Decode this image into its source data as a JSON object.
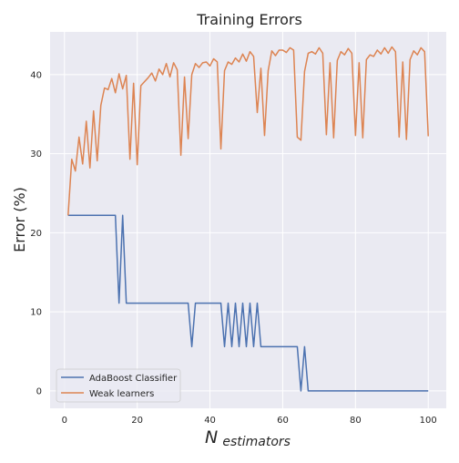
{
  "chart_data": {
    "type": "line",
    "title": "Training Errors",
    "xlabel_base": "N",
    "xlabel_sub": "estimators",
    "ylabel": "Error (%)",
    "xlim": [
      -3.95,
      104.95
    ],
    "ylim": [
      -2.2,
      45.4
    ],
    "xticks": [
      0,
      20,
      40,
      60,
      80,
      100
    ],
    "yticks": [
      0,
      10,
      20,
      30,
      40
    ],
    "grid": true,
    "legend_position": "lower-left",
    "series": [
      {
        "name": "AdaBoost Classifier",
        "color": "#4c72b0",
        "x": [
          1,
          2,
          3,
          4,
          5,
          6,
          7,
          8,
          9,
          10,
          11,
          12,
          13,
          14,
          15,
          16,
          17,
          18,
          19,
          20,
          21,
          22,
          23,
          24,
          25,
          26,
          27,
          28,
          29,
          30,
          31,
          32,
          33,
          34,
          35,
          36,
          37,
          38,
          39,
          40,
          41,
          42,
          43,
          44,
          45,
          46,
          47,
          48,
          49,
          50,
          51,
          52,
          53,
          54,
          55,
          56,
          57,
          58,
          59,
          60,
          61,
          62,
          63,
          64,
          65,
          66,
          67,
          68,
          69,
          70,
          71,
          72,
          73,
          74,
          75,
          76,
          77,
          78,
          79,
          80,
          81,
          82,
          83,
          84,
          85,
          86,
          87,
          88,
          89,
          90,
          91,
          92,
          93,
          94,
          95,
          96,
          97,
          98,
          99,
          100
        ],
        "y": [
          22.2,
          22.2,
          22.2,
          22.2,
          22.2,
          22.2,
          22.2,
          22.2,
          22.2,
          22.2,
          22.2,
          22.2,
          22.2,
          22.2,
          11.1,
          22.2,
          11.1,
          11.1,
          11.1,
          11.1,
          11.1,
          11.1,
          11.1,
          11.1,
          11.1,
          11.1,
          11.1,
          11.1,
          11.1,
          11.1,
          11.1,
          11.1,
          11.1,
          11.1,
          5.6,
          11.1,
          11.1,
          11.1,
          11.1,
          11.1,
          11.1,
          11.1,
          11.1,
          5.6,
          11.1,
          5.6,
          11.1,
          5.6,
          11.1,
          5.6,
          11.1,
          5.6,
          11.1,
          5.6,
          5.6,
          5.6,
          5.6,
          5.6,
          5.6,
          5.6,
          5.6,
          5.6,
          5.6,
          5.6,
          0,
          5.6,
          0,
          0,
          0,
          0,
          0,
          0,
          0,
          0,
          0,
          0,
          0,
          0,
          0,
          0,
          0,
          0,
          0,
          0,
          0,
          0,
          0,
          0,
          0,
          0,
          0,
          0,
          0,
          0,
          0,
          0,
          0,
          0,
          0,
          0
        ]
      },
      {
        "name": "Weak learners",
        "color": "#dd8452",
        "x": [
          1,
          2,
          3,
          4,
          5,
          6,
          7,
          8,
          9,
          10,
          11,
          12,
          13,
          14,
          15,
          16,
          17,
          18,
          19,
          20,
          21,
          22,
          23,
          24,
          25,
          26,
          27,
          28,
          29,
          30,
          31,
          32,
          33,
          34,
          35,
          36,
          37,
          38,
          39,
          40,
          41,
          42,
          43,
          44,
          45,
          46,
          47,
          48,
          49,
          50,
          51,
          52,
          53,
          54,
          55,
          56,
          57,
          58,
          59,
          60,
          61,
          62,
          63,
          64,
          65,
          66,
          67,
          68,
          69,
          70,
          71,
          72,
          73,
          74,
          75,
          76,
          77,
          78,
          79,
          80,
          81,
          82,
          83,
          84,
          85,
          86,
          87,
          88,
          89,
          90,
          91,
          92,
          93,
          94,
          95,
          96,
          97,
          98,
          99,
          100
        ],
        "y": [
          22.2,
          29.3,
          27.8,
          32.1,
          28.7,
          34.1,
          28.2,
          35.4,
          29.1,
          36.1,
          38.3,
          38.1,
          39.5,
          37.7,
          40.1,
          38.2,
          39.9,
          29.3,
          38.9,
          28.6,
          38.6,
          39.1,
          39.6,
          40.2,
          39.2,
          40.7,
          40.0,
          41.4,
          39.7,
          41.5,
          40.6,
          29.8,
          39.7,
          31.9,
          40.0,
          41.4,
          40.9,
          41.5,
          41.6,
          41.1,
          42.0,
          41.6,
          30.6,
          40.5,
          41.6,
          41.3,
          42.1,
          41.6,
          42.6,
          41.7,
          42.9,
          42.3,
          35.2,
          40.8,
          32.3,
          40.5,
          43.0,
          42.4,
          43.1,
          43.1,
          42.8,
          43.4,
          43.1,
          32.1,
          31.7,
          40.4,
          42.7,
          42.9,
          42.6,
          43.4,
          42.7,
          32.4,
          41.5,
          32.0,
          41.8,
          42.9,
          42.5,
          43.3,
          42.7,
          32.3,
          41.5,
          32.0,
          41.9,
          42.5,
          42.3,
          43.1,
          42.6,
          43.4,
          42.7,
          43.5,
          42.9,
          32.1,
          41.6,
          31.8,
          41.9,
          43.0,
          42.5,
          43.4,
          42.9,
          32.2
        ]
      }
    ]
  }
}
